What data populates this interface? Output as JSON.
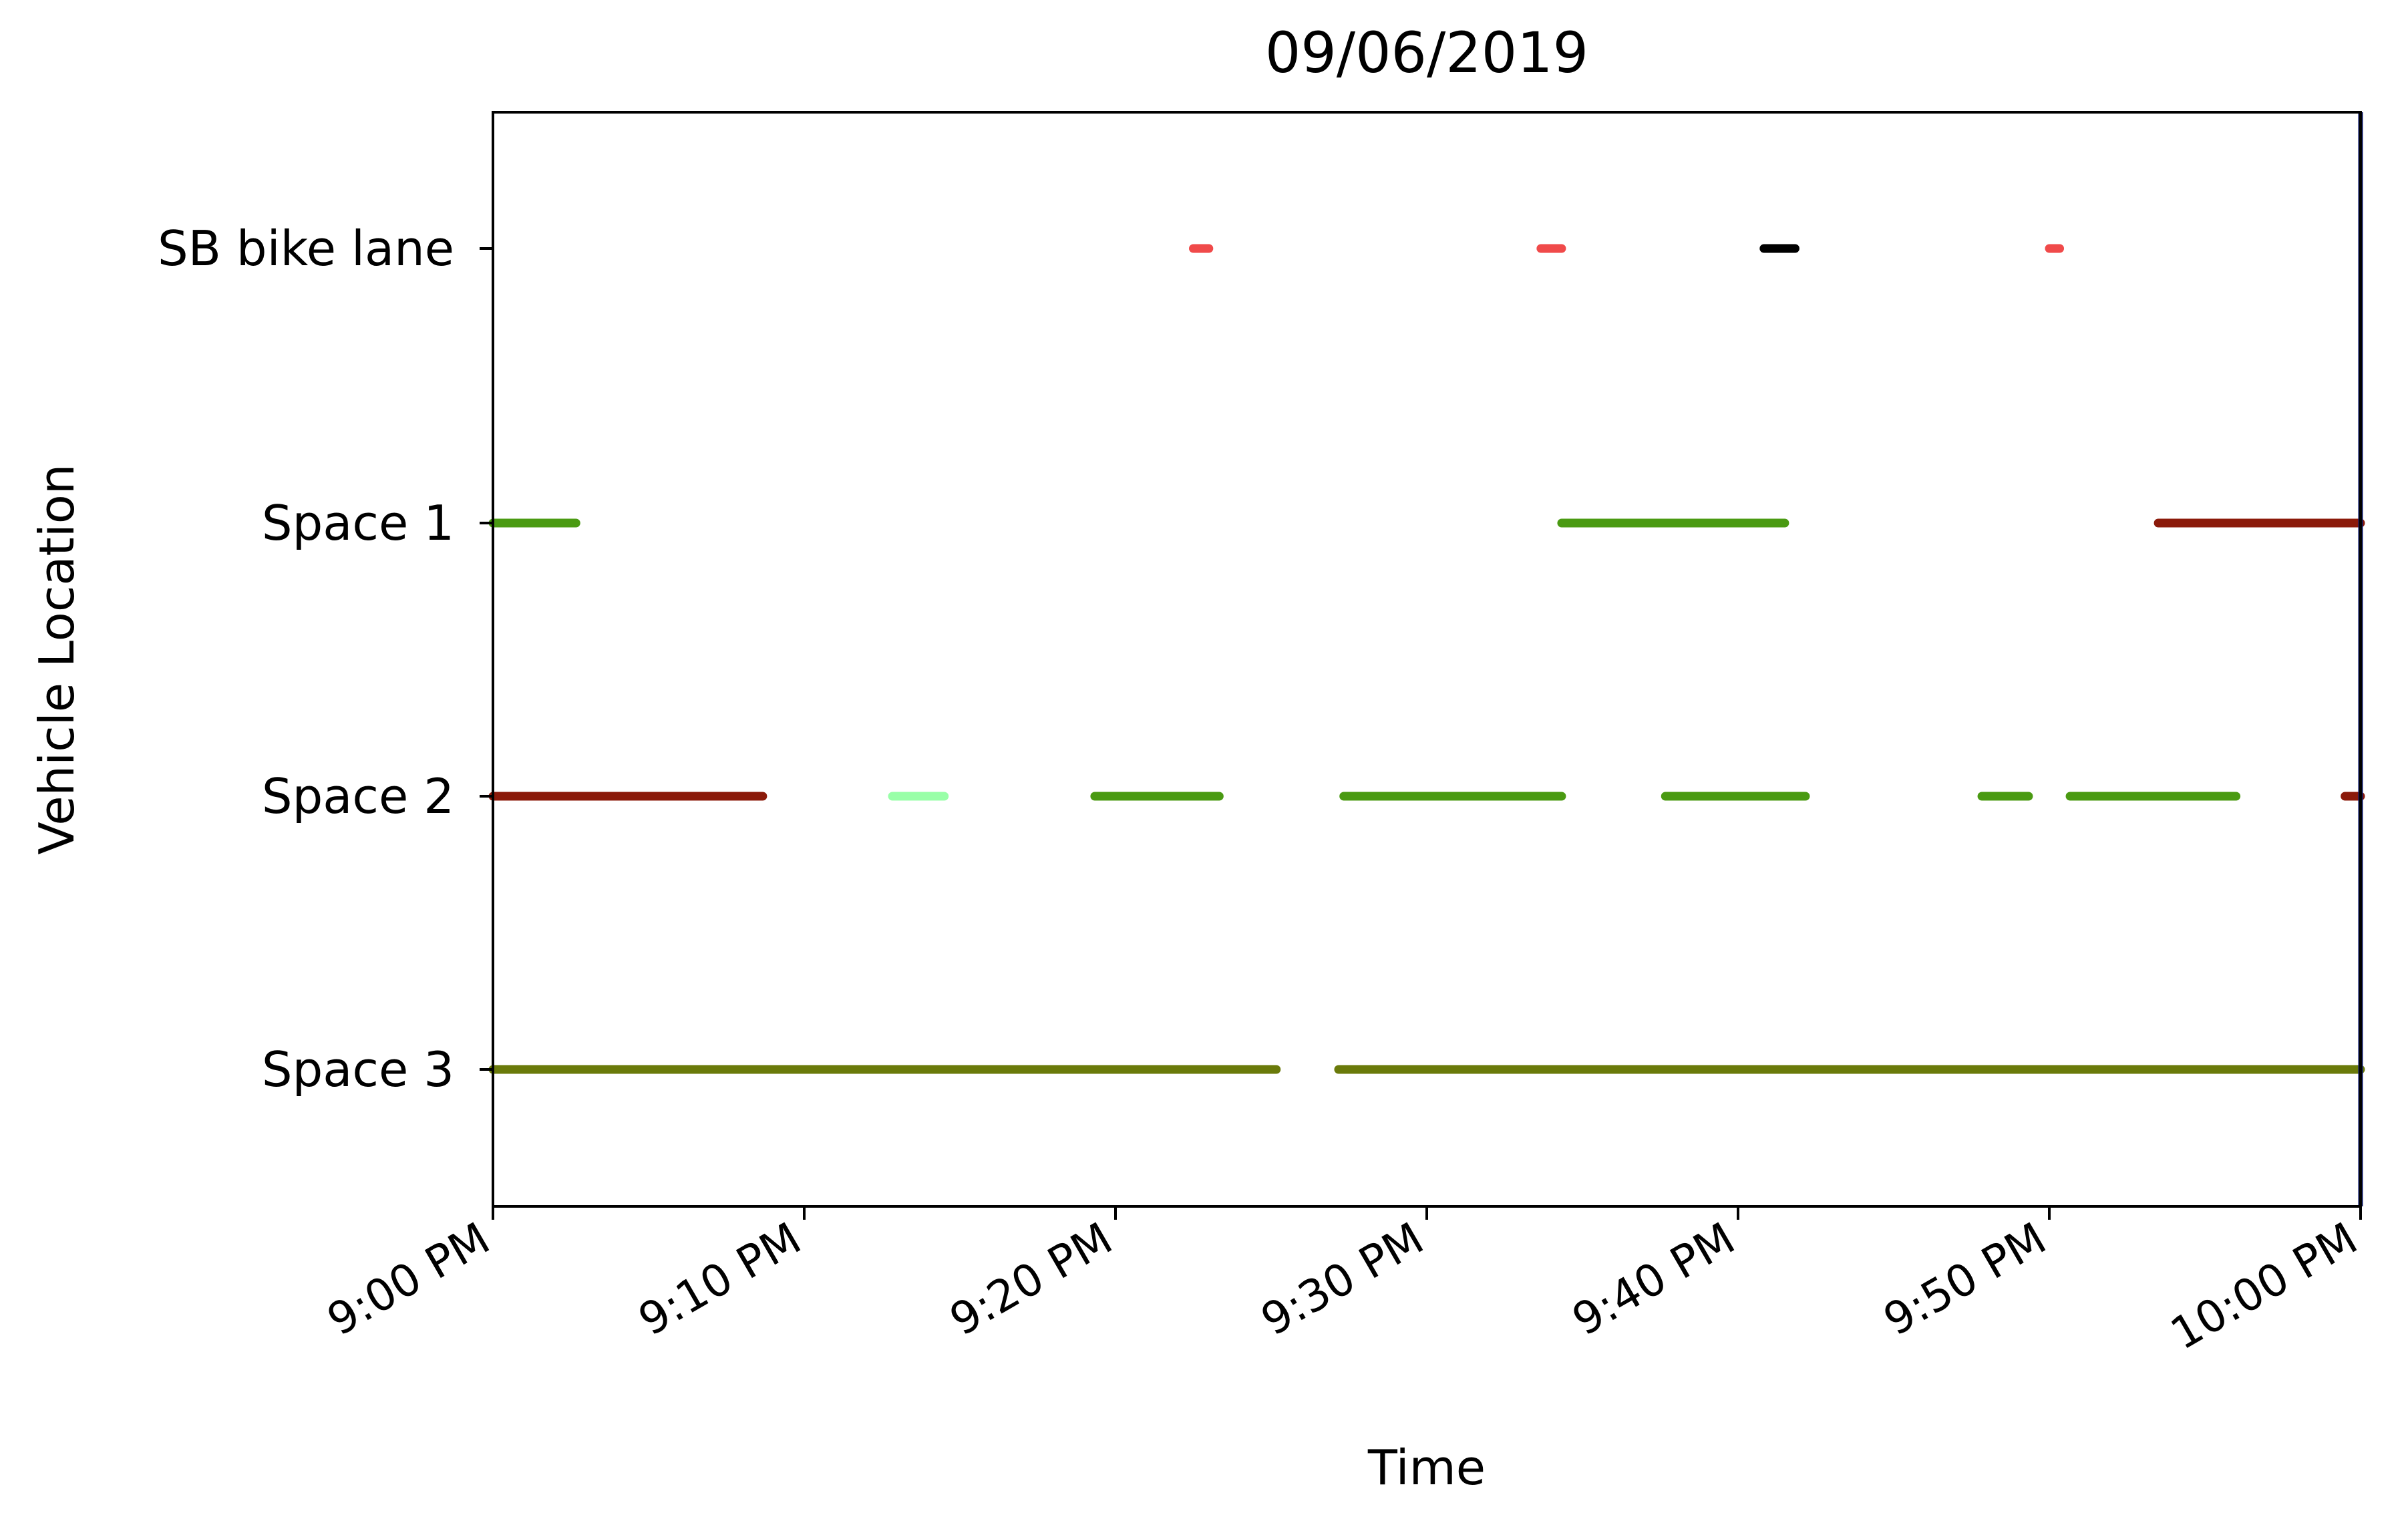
{
  "chart_data": {
    "type": "timeline",
    "title": "09/06/2019",
    "xlabel": "Time",
    "ylabel": "Vehicle Location",
    "x_range": [
      "21:00",
      "22:00"
    ],
    "x_ticks": [
      {
        "time": "21:00",
        "label": "9:00 PM"
      },
      {
        "time": "21:10",
        "label": "9:10 PM"
      },
      {
        "time": "21:20",
        "label": "9:20 PM"
      },
      {
        "time": "21:30",
        "label": "9:30 PM"
      },
      {
        "time": "21:40",
        "label": "9:40 PM"
      },
      {
        "time": "21:50",
        "label": "9:50 PM"
      },
      {
        "time": "22:00",
        "label": "10:00 PM"
      }
    ],
    "locations": [
      "SB bike lane",
      "Space 1",
      "Space 2",
      "Space 3"
    ],
    "grid": false,
    "segments": [
      {
        "location": "SB bike lane",
        "start": "21:22:30",
        "end": "21:23:00",
        "color": "#f04a4a"
      },
      {
        "location": "SB bike lane",
        "start": "21:33:40",
        "end": "21:34:20",
        "color": "#f04a4a"
      },
      {
        "location": "SB bike lane",
        "start": "21:40:50",
        "end": "21:41:50",
        "color": "#000000"
      },
      {
        "location": "SB bike lane",
        "start": "21:50:00",
        "end": "21:50:20",
        "color": "#f04a4a"
      },
      {
        "location": "Space 1",
        "start": "21:00:00",
        "end": "21:02:40",
        "color": "#4a9a12"
      },
      {
        "location": "Space 1",
        "start": "21:34:20",
        "end": "21:41:30",
        "color": "#4a9a12"
      },
      {
        "location": "Space 1",
        "start": "21:53:30",
        "end": "22:00:00",
        "color": "#8b1a0a"
      },
      {
        "location": "Space 2",
        "start": "21:00:00",
        "end": "21:08:40",
        "color": "#8b1a0a"
      },
      {
        "location": "Space 2",
        "start": "21:12:50",
        "end": "21:14:30",
        "color": "#99ffa8"
      },
      {
        "location": "Space 2",
        "start": "21:19:20",
        "end": "21:23:20",
        "color": "#4a9a12"
      },
      {
        "location": "Space 2",
        "start": "21:27:20",
        "end": "21:34:20",
        "color": "#4a9a12"
      },
      {
        "location": "Space 2",
        "start": "21:37:40",
        "end": "21:42:10",
        "color": "#4a9a12"
      },
      {
        "location": "Space 2",
        "start": "21:47:50",
        "end": "21:49:20",
        "color": "#4a9a12"
      },
      {
        "location": "Space 2",
        "start": "21:50:40",
        "end": "21:56:00",
        "color": "#4a9a12"
      },
      {
        "location": "Space 2",
        "start": "21:59:30",
        "end": "22:00:00",
        "color": "#8b1a0a"
      },
      {
        "location": "Space 3",
        "start": "21:00:00",
        "end": "21:25:10",
        "color": "#6a7a0a"
      },
      {
        "location": "Space 3",
        "start": "21:27:10",
        "end": "22:00:00",
        "color": "#6a7a0a"
      }
    ]
  }
}
